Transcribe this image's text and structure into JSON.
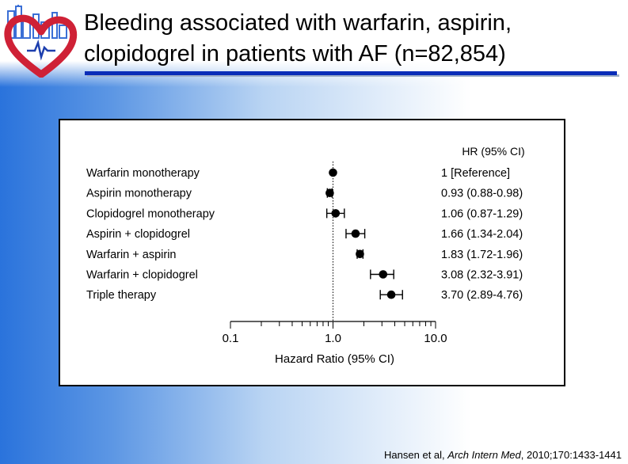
{
  "title": {
    "line1": "Bleeding associated with warfarin, aspirin,",
    "line2": "clopidogrel in patients with AF (n=82,854)"
  },
  "citation": {
    "authors": "Hansen et al, ",
    "journal": "Arch Intern Med",
    "details": ", 2010;170:1433-1441"
  },
  "colors": {
    "rule": "#0a2db8",
    "logo_heart": "#cf2136",
    "logo_skyline": "#3b6fd6",
    "background_blue": "#2a73dc"
  },
  "chart_data": {
    "type": "forest",
    "column_header": "HR (95% CI)",
    "xlabel": "Hazard Ratio (95% CI)",
    "xscale": "log",
    "xlim": [
      0.1,
      10.0
    ],
    "xticks": [
      "0.1",
      "1.0",
      "10.0"
    ],
    "reference_line": 1.0,
    "rows": [
      {
        "label": "Warfarin monotherapy",
        "hr": 1.0,
        "lo": 1.0,
        "hi": 1.0,
        "text": "1 [Reference]"
      },
      {
        "label": "Aspirin monotherapy",
        "hr": 0.93,
        "lo": 0.88,
        "hi": 0.98,
        "text": "0.93 (0.88-0.98)"
      },
      {
        "label": "Clopidogrel monotherapy",
        "hr": 1.06,
        "lo": 0.87,
        "hi": 1.29,
        "text": "1.06 (0.87-1.29)"
      },
      {
        "label": "Aspirin + clopidogrel",
        "hr": 1.66,
        "lo": 1.34,
        "hi": 2.04,
        "text": "1.66 (1.34-2.04)"
      },
      {
        "label": "Warfarin + aspirin",
        "hr": 1.83,
        "lo": 1.72,
        "hi": 1.96,
        "text": "1.83 (1.72-1.96)"
      },
      {
        "label": "Warfarin + clopidogrel",
        "hr": 3.08,
        "lo": 2.32,
        "hi": 3.91,
        "text": "3.08 (2.32-3.91)"
      },
      {
        "label": "Triple therapy",
        "hr": 3.7,
        "lo": 2.89,
        "hi": 4.76,
        "text": "3.70 (2.89-4.76)"
      }
    ]
  }
}
